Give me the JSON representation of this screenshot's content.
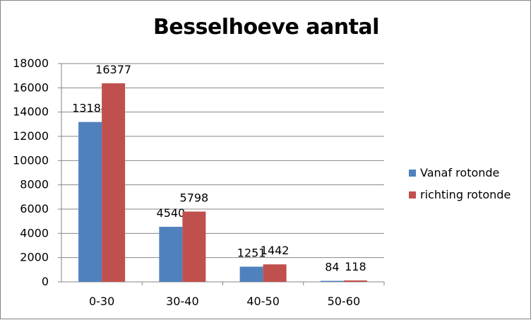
{
  "chart_data": {
    "type": "bar",
    "title": "Besselhoeve aantal",
    "categories": [
      "0-30",
      "30-40",
      "40-50",
      "50-60"
    ],
    "series": [
      {
        "name": "Vanaf rotonde",
        "values": [
          13184,
          4540,
          1251,
          84
        ],
        "color": "#4F81BD"
      },
      {
        "name": "richting rotonde",
        "values": [
          16377,
          5798,
          1442,
          118
        ],
        "color": "#C0504D"
      }
    ],
    "ylim": [
      0,
      18000
    ],
    "yticks": [
      "0",
      "2000",
      "4000",
      "6000",
      "8000",
      "10000",
      "12000",
      "14000",
      "16000",
      "18000"
    ],
    "grid": true,
    "legend_position": "right",
    "data_labels": true
  }
}
